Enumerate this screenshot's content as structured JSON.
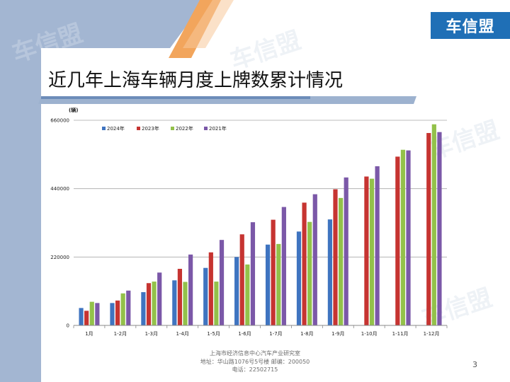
{
  "brand": {
    "logo_text": "车信盟",
    "watermark_text": "车信盟"
  },
  "slide": {
    "title": "近几年上海车辆月度上牌数累计情况",
    "page_number": "3"
  },
  "footer": {
    "line1": "上海市经济信息中心汽车产业研究室",
    "line2": "地址：华山路1076号5号楼   邮编：200050",
    "line3": "电话：22502715"
  },
  "colors": {
    "brand_blue": "#1f6fb6",
    "band_blue": "#9db2cf",
    "stripe_orange": "#f2a55c",
    "series": [
      "#3f74c0",
      "#c63431",
      "#93c14a",
      "#7b58a8"
    ]
  },
  "chart_data": {
    "type": "bar",
    "unit_label": "(辆)",
    "categories": [
      "1月",
      "1-2月",
      "1-3月",
      "1-4月",
      "1-5月",
      "1-6月",
      "1-7月",
      "1-8月",
      "1-9月",
      "1-10月",
      "1-11月",
      "1-12月"
    ],
    "y_ticks": [
      "0",
      "220000",
      "440000",
      "660000"
    ],
    "ylim": [
      0,
      660000
    ],
    "grid": true,
    "legend_position": "top-left",
    "series": [
      {
        "name": "2024年",
        "values": [
          56000,
          72000,
          107000,
          145000,
          185000,
          220000,
          260000,
          302000,
          341000,
          null,
          null,
          null
        ]
      },
      {
        "name": "2023年",
        "values": [
          47000,
          80000,
          136000,
          182000,
          235000,
          293000,
          340000,
          395000,
          438000,
          479000,
          543000,
          619000
        ]
      },
      {
        "name": "2022年",
        "values": [
          76000,
          103000,
          141000,
          140000,
          141000,
          196000,
          262000,
          333000,
          410000,
          472000,
          565000,
          647000
        ]
      },
      {
        "name": "2021年",
        "values": [
          72000,
          112000,
          170000,
          228000,
          275000,
          332000,
          381000,
          422000,
          476000,
          512000,
          563000,
          622000
        ]
      }
    ]
  }
}
